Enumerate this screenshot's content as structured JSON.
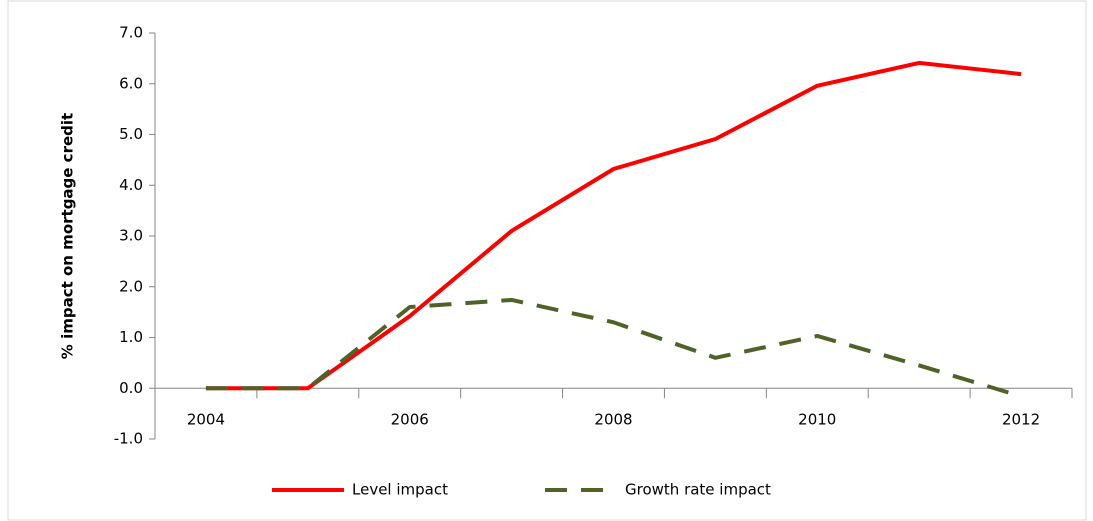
{
  "chart_data": {
    "type": "line",
    "y_label": "% impact on mortgage credit",
    "categories": [
      "2004",
      null,
      "2006",
      null,
      "2008",
      null,
      "2010",
      null,
      "2012"
    ],
    "series": [
      {
        "name": "Level impact",
        "color": "#ff0000",
        "dash": "solid",
        "values": [
          0,
          0,
          1.42,
          3.1,
          4.32,
          4.91,
          5.96,
          6.41,
          6.19
        ]
      },
      {
        "name": "Growth rate impact",
        "color": "#4f6228",
        "dash": "dashed",
        "values": [
          0,
          0,
          1.6,
          1.74,
          1.3,
          0.6,
          1.03,
          0.45,
          -0.16
        ]
      }
    ],
    "ylim": [
      -1,
      7
    ],
    "yticks": [
      {
        "value": -1,
        "label": "-1.0"
      },
      {
        "value": 0,
        "label": "0.0"
      },
      {
        "value": 1,
        "label": "1.0"
      },
      {
        "value": 2,
        "label": "2.0"
      },
      {
        "value": 3,
        "label": "3.0"
      },
      {
        "value": 4,
        "label": "4.0"
      },
      {
        "value": 5,
        "label": "5.0"
      },
      {
        "value": 6,
        "label": "6.0"
      },
      {
        "value": 7,
        "label": "7.0"
      }
    ],
    "grid": false,
    "legend": "bottom"
  }
}
